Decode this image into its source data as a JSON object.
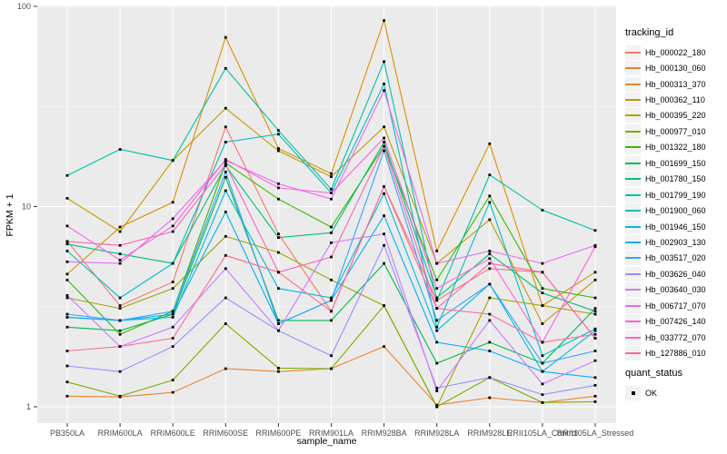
{
  "chart_data": {
    "type": "line",
    "title": "",
    "xlabel": "sample_name",
    "ylabel": "FPKM + 1",
    "y_scale": "log10",
    "ylim": [
      1,
      110
    ],
    "yticks": [
      1,
      10,
      100
    ],
    "ytick_labels": [
      "1",
      "10",
      "100"
    ],
    "grid": "major+minor-horizontal, major-vertical",
    "legend_position": "right",
    "categories": [
      "PB350LA",
      "RRIM600LA",
      "RRIM600LE",
      "RRIM600SE",
      "RRIM600PE",
      "RRIM901LA",
      "RRIM928BA",
      "RRIM928LA",
      "RRIM928LE",
      "RRII105LA_Control",
      "RRII105LA_Stressed"
    ],
    "series": [
      {
        "name": "Hb_000022_180",
        "color": "#F8766D",
        "values": [
          6.7,
          3.2,
          4.2,
          25,
          7.3,
          3.0,
          12.6,
          3.4,
          4.9,
          4.7,
          2.2
        ]
      },
      {
        "name": "Hb_000130_060",
        "color": "#EA8331",
        "values": [
          1.13,
          1.12,
          1.18,
          1.55,
          1.5,
          1.55,
          2.0,
          1.02,
          1.11,
          1.05,
          1.13
        ]
      },
      {
        "name": "Hb_000313_370",
        "color": "#D89000",
        "values": [
          4.6,
          7.9,
          10.5,
          70,
          19.5,
          14.6,
          85,
          6.0,
          20.6,
          3.2,
          4.7
        ]
      },
      {
        "name": "Hb_000362_110",
        "color": "#C09B00",
        "values": [
          11,
          7.5,
          17,
          31,
          19,
          14.1,
          25,
          5.2,
          8.6,
          2.6,
          4.3
        ]
      },
      {
        "name": "Hb_000395_220",
        "color": "#A3A500",
        "values": [
          3.5,
          3.1,
          3.9,
          7.1,
          5.9,
          4.3,
          3.2,
          1.0,
          3.5,
          3.2,
          2.9
        ]
      },
      {
        "name": "Hb_000977_010",
        "color": "#7CAE00",
        "values": [
          1.33,
          1.13,
          1.36,
          2.6,
          1.56,
          1.55,
          3.2,
          1.0,
          1.4,
          1.05,
          1.06
        ]
      },
      {
        "name": "Hb_001322_180",
        "color": "#39B600",
        "values": [
          4.3,
          2.3,
          3.0,
          16.5,
          10.9,
          7.9,
          20,
          4.3,
          11.3,
          3.9,
          3.5
        ]
      },
      {
        "name": "Hb_001699_150",
        "color": "#00BB4E",
        "values": [
          2.5,
          2.4,
          2.9,
          14,
          2.7,
          2.7,
          5.2,
          1.65,
          2.1,
          1.65,
          3.1
        ]
      },
      {
        "name": "Hb_001780_150",
        "color": "#00BF7D",
        "values": [
          6.5,
          5.8,
          5.2,
          16,
          7.0,
          7.4,
          21,
          3.5,
          5.8,
          3.7,
          3.0
        ]
      },
      {
        "name": "Hb_001799_190",
        "color": "#00C1A3",
        "values": [
          14.3,
          19.3,
          17,
          49,
          24,
          12.2,
          53,
          3.4,
          14.4,
          9.6,
          7.6
        ]
      },
      {
        "name": "Hb_001900_060",
        "color": "#00BFC4",
        "values": [
          6.0,
          3.5,
          5.2,
          21,
          23,
          11.7,
          41,
          2.5,
          10.5,
          1.8,
          2.45
        ]
      },
      {
        "name": "Hb_001946_150",
        "color": "#00BAE0",
        "values": [
          2.8,
          2.7,
          2.8,
          12,
          3.9,
          3.5,
          11.6,
          2.4,
          4.1,
          1.5,
          2.4
        ]
      },
      {
        "name": "Hb_002903_130",
        "color": "#00B0F6",
        "values": [
          2.8,
          2.7,
          2.9,
          9.4,
          2.6,
          3.4,
          9.0,
          2.1,
          1.9,
          1.5,
          1.4
        ]
      },
      {
        "name": "Hb_003517_020",
        "color": "#35A2FF",
        "values": [
          2.9,
          2.7,
          3.0,
          14.9,
          2.6,
          3.4,
          19,
          2.7,
          4.1,
          1.65,
          1.9
        ]
      },
      {
        "name": "Hb_003626_040",
        "color": "#9590FF",
        "values": [
          1.6,
          1.5,
          2.0,
          3.5,
          2.4,
          1.8,
          6.4,
          1.24,
          1.4,
          1.15,
          1.28
        ]
      },
      {
        "name": "Hb_003640_030",
        "color": "#C77CFF",
        "values": [
          3.6,
          2.0,
          2.5,
          4.9,
          2.4,
          6.6,
          7.3,
          1.2,
          2.7,
          1.3,
          1.7
        ]
      },
      {
        "name": "Hb_006717_070",
        "color": "#E76BF3",
        "values": [
          5.3,
          5.2,
          8.7,
          17,
          13,
          10.9,
          38,
          5.2,
          6.0,
          5.2,
          6.4
        ]
      },
      {
        "name": "Hb_007426_140",
        "color": "#FA62DB",
        "values": [
          8.0,
          5.4,
          8.0,
          17.2,
          12.4,
          11.7,
          22,
          3.9,
          5.5,
          2.1,
          6.3
        ]
      },
      {
        "name": "Hb_033772_070",
        "color": "#FF62BC",
        "values": [
          6.7,
          6.4,
          7.5,
          16.2,
          4.7,
          5.6,
          20,
          3.1,
          5.2,
          4.7,
          2.2
        ]
      },
      {
        "name": "Hb_127886_010",
        "color": "#FF6A98",
        "values": [
          1.9,
          2.0,
          2.2,
          5.7,
          4.7,
          3.0,
          12.6,
          3.1,
          2.9,
          2.1,
          2.3
        ]
      }
    ]
  },
  "legend": {
    "tracking_title": "tracking_id",
    "quant_title": "quant_status",
    "quant_items": [
      {
        "label": "OK",
        "marker": "black-square"
      }
    ]
  },
  "colors": {
    "panel_bg": "#EBEBEB",
    "grid_major": "#FFFFFF",
    "grid_minor": "#F7F7F7",
    "point": "#000000",
    "tick_text": "#4D4D4D",
    "axis_title": "#000000",
    "legend_key_bg": "#F2F2F2"
  }
}
